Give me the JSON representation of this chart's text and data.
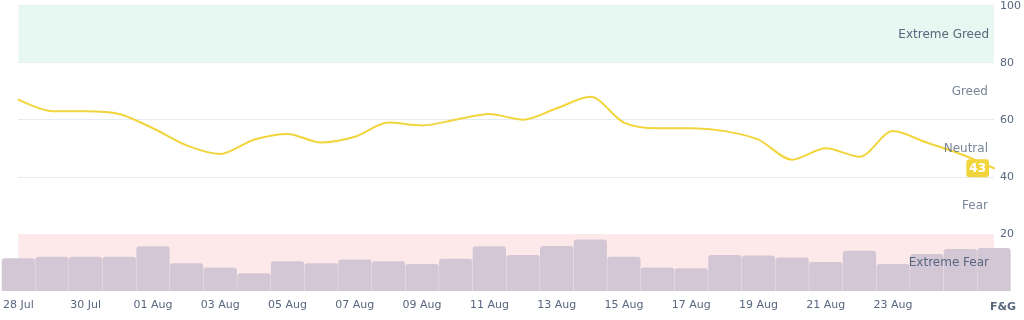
{
  "chart_data": {
    "type": "line",
    "ylabel": "F&G",
    "x": [
      "--07-28",
      "--07-29",
      "--07-30",
      "--07-31",
      "--08-01",
      "--08-02",
      "--08-03",
      "--08-04",
      "--08-05",
      "--08-06",
      "--08-07",
      "--08-08",
      "--08-09",
      "--08-10",
      "--08-11",
      "--08-12",
      "--08-13",
      "--08-14",
      "--08-15",
      "--08-16",
      "--08-17",
      "--08-18",
      "--08-19",
      "--08-20",
      "--08-21",
      "--08-22",
      "--08-23",
      "--08-24",
      "--08-25",
      "--08-26"
    ],
    "series": [
      {
        "type": "bar",
        "color": "#d3c7d6",
        "values": [
          11.5,
          12,
          12,
          12,
          15.7,
          9.7,
          8.2,
          6.2,
          10.4,
          9.7,
          11,
          10.4,
          9.5,
          11.3,
          15.7,
          12.6,
          15.8,
          18,
          12,
          8.2,
          8,
          12.6,
          12.4,
          11.7,
          10.2,
          14.1,
          9.5,
          13,
          14.7,
          15.1
        ]
      },
      {
        "color": "#f2d53c",
        "values": [
          67,
          63,
          63,
          62,
          57,
          51,
          48,
          53,
          55,
          52,
          54,
          59,
          58,
          60,
          62,
          60,
          64,
          68,
          59,
          57,
          57,
          56,
          53,
          46,
          50,
          47,
          56,
          52,
          48,
          43
        ],
        "value_labels": [
          null,
          null,
          null,
          null,
          null,
          null,
          null,
          null,
          null,
          null,
          null,
          null,
          null,
          null,
          null,
          null,
          null,
          null,
          null,
          null,
          null,
          null,
          null,
          null,
          null,
          null,
          null,
          null,
          null,
          "43"
        ]
      }
    ],
    "xlim": [
      "--07-28",
      "--08-26"
    ],
    "xticks": [
      {
        "value": "--07-28",
        "label": "28 Jul"
      },
      {
        "value": "--07-30",
        "label": "30 Jul"
      },
      {
        "value": "--08-01",
        "label": "01 Aug"
      },
      {
        "value": "--08-03",
        "label": "03 Aug"
      },
      {
        "value": "--08-05",
        "label": "05 Aug"
      },
      {
        "value": "--08-07",
        "label": "07 Aug"
      },
      {
        "value": "--08-09",
        "label": "09 Aug"
      },
      {
        "value": "--08-11",
        "label": "11 Aug"
      },
      {
        "value": "--08-13",
        "label": "13 Aug"
      },
      {
        "value": "--08-15",
        "label": "15 Aug"
      },
      {
        "value": "--08-17",
        "label": "17 Aug"
      },
      {
        "value": "--08-19",
        "label": "19 Aug"
      },
      {
        "value": "--08-21",
        "label": "21 Aug"
      },
      {
        "value": "--08-23",
        "label": "23 Aug"
      }
    ],
    "ylim": [
      0,
      100
    ],
    "yticks": [
      20,
      40,
      60,
      80,
      100
    ],
    "bands": [
      {
        "axis": "y",
        "from": 80,
        "to": 100,
        "label": "Extreme Greed",
        "color": "#e7f7f1"
      },
      {
        "axis": "y",
        "from": 0,
        "to": 20,
        "label": "Extreme Fear",
        "color": "#fde9e9"
      }
    ],
    "annotations": [
      "Greed",
      "Neutral",
      "Fear"
    ],
    "grid": "y",
    "marker": "none",
    "line_style": "solid"
  }
}
